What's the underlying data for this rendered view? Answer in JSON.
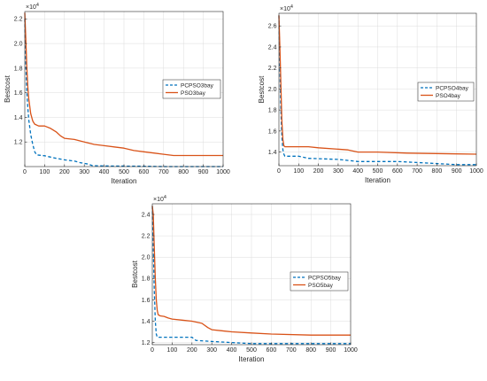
{
  "colors": {
    "pcpso": "#0072BD",
    "pso": "#D95319",
    "axis": "#262626",
    "grid": "#dcdcdc"
  },
  "chart_data": [
    {
      "type": "line",
      "xlabel": "Iteration",
      "ylabel": "Bestcost",
      "exponent": "4",
      "xlim": [
        0,
        1000
      ],
      "ylim": [
        1.0,
        2.26
      ],
      "xticks": [
        0,
        100,
        200,
        300,
        400,
        500,
        600,
        700,
        800,
        900,
        1000
      ],
      "yticks": [
        1.2,
        1.4,
        1.6,
        1.8,
        2.0,
        2.2
      ],
      "grid": true,
      "legend_position": "middle-right",
      "series": [
        {
          "name": "PCPSO3bay",
          "style": "dashed",
          "color": "#0072BD",
          "x": [
            0,
            5,
            10,
            15,
            20,
            30,
            40,
            50,
            60,
            100,
            150,
            200,
            250,
            280,
            320,
            340,
            400,
            600,
            700,
            1000
          ],
          "y": [
            2.2,
            1.85,
            1.62,
            1.48,
            1.38,
            1.26,
            1.18,
            1.12,
            1.095,
            1.088,
            1.07,
            1.055,
            1.045,
            1.032,
            1.02,
            1.008,
            1.005,
            1.003,
            1.0,
            1.0
          ]
        },
        {
          "name": "PSO3bay",
          "style": "solid",
          "color": "#D95319",
          "x": [
            0,
            5,
            10,
            15,
            20,
            30,
            40,
            50,
            70,
            100,
            130,
            160,
            180,
            200,
            250,
            300,
            350,
            400,
            450,
            500,
            550,
            600,
            650,
            700,
            750,
            1000
          ],
          "y": [
            2.25,
            2.05,
            1.82,
            1.65,
            1.55,
            1.43,
            1.37,
            1.345,
            1.33,
            1.33,
            1.31,
            1.28,
            1.25,
            1.23,
            1.22,
            1.2,
            1.18,
            1.17,
            1.16,
            1.15,
            1.13,
            1.12,
            1.11,
            1.1,
            1.09,
            1.09
          ]
        }
      ]
    },
    {
      "type": "line",
      "xlabel": "Iteration",
      "ylabel": "Bestcost",
      "exponent": "4",
      "xlim": [
        0,
        1000
      ],
      "ylim": [
        1.27,
        2.72
      ],
      "xticks": [
        0,
        100,
        200,
        300,
        400,
        500,
        600,
        700,
        800,
        900,
        1000
      ],
      "yticks": [
        1.4,
        1.6,
        1.8,
        2.0,
        2.2,
        2.4,
        2.6
      ],
      "grid": true,
      "legend_position": "top-right",
      "series": [
        {
          "name": "PCPSO4bay",
          "style": "dashed",
          "color": "#0072BD",
          "x": [
            0,
            5,
            10,
            15,
            20,
            25,
            30,
            100,
            150,
            300,
            400,
            600,
            700,
            900,
            1000
          ],
          "y": [
            2.7,
            2.2,
            1.8,
            1.55,
            1.42,
            1.38,
            1.36,
            1.36,
            1.34,
            1.33,
            1.31,
            1.31,
            1.3,
            1.28,
            1.28
          ]
        },
        {
          "name": "PSO4bay",
          "style": "solid",
          "color": "#D95319",
          "x": [
            0,
            5,
            10,
            15,
            20,
            25,
            30,
            100,
            150,
            200,
            350,
            400,
            500,
            650,
            1000
          ],
          "y": [
            2.7,
            2.4,
            2.05,
            1.7,
            1.52,
            1.46,
            1.45,
            1.45,
            1.45,
            1.44,
            1.42,
            1.4,
            1.4,
            1.39,
            1.38
          ]
        }
      ]
    },
    {
      "type": "line",
      "xlabel": "Iteration",
      "ylabel": "Bestcost",
      "exponent": "4",
      "xlim": [
        0,
        1000
      ],
      "ylim": [
        1.18,
        2.5
      ],
      "xticks": [
        0,
        100,
        200,
        300,
        400,
        500,
        600,
        700,
        800,
        900,
        1000
      ],
      "yticks": [
        1.2,
        1.4,
        1.6,
        1.8,
        2.0,
        2.2,
        2.4
      ],
      "grid": true,
      "legend_position": "middle-right",
      "series": [
        {
          "name": "PCPSO5bay",
          "style": "dashed",
          "color": "#0072BD",
          "x": [
            0,
            5,
            10,
            15,
            20,
            25,
            30,
            100,
            200,
            220,
            300,
            400,
            500,
            1000
          ],
          "y": [
            2.48,
            2.1,
            1.7,
            1.4,
            1.28,
            1.25,
            1.25,
            1.25,
            1.25,
            1.22,
            1.21,
            1.2,
            1.19,
            1.19
          ]
        },
        {
          "name": "PSO5bay",
          "style": "solid",
          "color": "#D95319",
          "x": [
            0,
            5,
            10,
            15,
            20,
            25,
            30,
            40,
            60,
            80,
            100,
            150,
            200,
            250,
            280,
            300,
            350,
            400,
            500,
            600,
            800,
            1000
          ],
          "y": [
            2.48,
            2.4,
            2.1,
            1.8,
            1.6,
            1.5,
            1.46,
            1.45,
            1.445,
            1.43,
            1.42,
            1.41,
            1.4,
            1.38,
            1.34,
            1.32,
            1.31,
            1.3,
            1.29,
            1.28,
            1.27,
            1.27
          ]
        }
      ]
    }
  ]
}
